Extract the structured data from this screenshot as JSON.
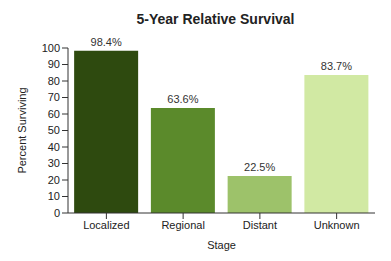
{
  "chart_data": {
    "type": "bar",
    "title": "5-Year Relative Survival",
    "x_label": "Stage",
    "y_label": "Percent Surviving",
    "categories": [
      "Localized",
      "Regional",
      "Distant",
      "Unknown"
    ],
    "values": [
      98.4,
      63.6,
      22.5,
      83.7
    ],
    "value_labels": [
      "98.4%",
      "63.6%",
      "22.5%",
      "83.7%"
    ],
    "colors": [
      "#2e4a0f",
      "#5b8a2b",
      "#9dc26a",
      "#d1e9a3"
    ],
    "ylim": [
      0,
      100
    ],
    "yticks": [
      0,
      10,
      20,
      30,
      40,
      50,
      60,
      70,
      80,
      90,
      100
    ],
    "grid": false,
    "data_labels": true
  }
}
